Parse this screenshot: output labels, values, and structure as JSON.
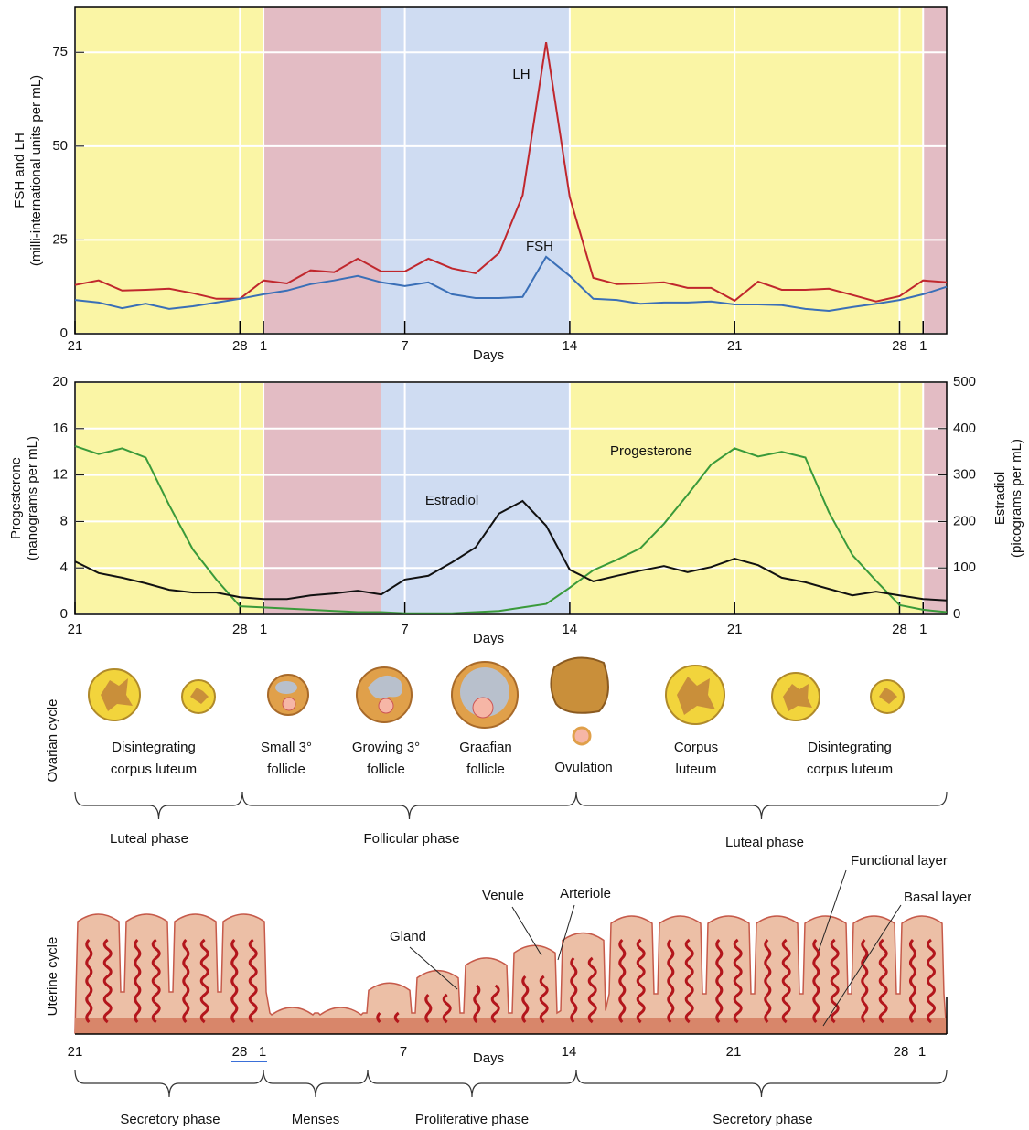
{
  "chart_data": [
    {
      "type": "line",
      "ylabel": [
        "FSH and LH",
        "(milli-international units per mL)"
      ],
      "xlabel": "Days",
      "xlim": [
        0,
        37
      ],
      "xticks": [
        {
          "value": 0,
          "label": "21"
        },
        {
          "value": 7,
          "label": "28"
        },
        {
          "value": 8,
          "label": "1"
        },
        {
          "value": 14,
          "label": "7"
        },
        {
          "value": 21,
          "label": "14"
        },
        {
          "value": 28,
          "label": "21"
        },
        {
          "value": 35,
          "label": "28"
        },
        {
          "value": 36,
          "label": "1"
        }
      ],
      "ylim": [
        0,
        87
      ],
      "yticks": [
        0,
        25,
        50,
        75
      ],
      "grid": true,
      "bands": [
        {
          "from": 0,
          "to": 8,
          "color": "#faf5a5"
        },
        {
          "from": 8,
          "to": 13,
          "color": "#e3bcc4"
        },
        {
          "from": 13,
          "to": 21,
          "color": "#cfdcf2"
        },
        {
          "from": 21,
          "to": 36,
          "color": "#faf5a5"
        },
        {
          "from": 36,
          "to": 37,
          "color": "#e3bcc4"
        }
      ],
      "x": [
        0,
        1,
        2,
        3,
        4,
        5,
        6,
        7,
        8,
        9,
        10,
        11,
        12,
        13,
        14,
        15,
        16,
        17,
        18,
        19,
        20,
        21,
        22,
        23,
        24,
        25,
        26,
        27,
        28,
        29,
        30,
        31,
        32,
        33,
        34,
        35,
        36,
        37
      ],
      "series": [
        {
          "name": "LH",
          "color": "#c0272d",
          "values": [
            13,
            14.2,
            11.5,
            11.7,
            12,
            10.8,
            9.3,
            9.3,
            14.2,
            13.4,
            16.9,
            16.4,
            20,
            16.6,
            16.6,
            20,
            17.4,
            16.1,
            21.5,
            36.9,
            77.7,
            36.4,
            14.9,
            13.2,
            13.4,
            13.7,
            12.2,
            12.2,
            8.8,
            13.9,
            11.7,
            11.7,
            12,
            10.3,
            8.6,
            10,
            14.2,
            13.7
          ]
        },
        {
          "name": "FSH",
          "color": "#3a6fb7",
          "values": [
            9,
            8.3,
            6.8,
            8,
            6.6,
            7.3,
            8.3,
            9.3,
            10.5,
            11.5,
            13.2,
            14.2,
            15.4,
            13.7,
            12.7,
            13.7,
            10.5,
            9.5,
            9.5,
            9.8,
            20.5,
            15.4,
            9.3,
            9,
            8,
            8.3,
            8.3,
            8.6,
            7.8,
            7.8,
            7.6,
            6.6,
            6.1,
            7.1,
            8,
            9,
            10.5,
            12.5
          ]
        }
      ]
    },
    {
      "type": "line",
      "ylabel": [
        "Progesterone",
        "(nanograms per mL)"
      ],
      "y2label": [
        "Estradiol",
        "(picograms per mL)"
      ],
      "xlabel": "Days",
      "xlim": [
        0,
        37
      ],
      "xticks": [
        {
          "value": 0,
          "label": "21"
        },
        {
          "value": 7,
          "label": "28"
        },
        {
          "value": 8,
          "label": "1"
        },
        {
          "value": 14,
          "label": "7"
        },
        {
          "value": 21,
          "label": "14"
        },
        {
          "value": 28,
          "label": "21"
        },
        {
          "value": 35,
          "label": "28"
        },
        {
          "value": 36,
          "label": "1"
        }
      ],
      "ylim": [
        0,
        20
      ],
      "yticks": [
        0,
        4,
        8,
        12,
        16,
        20
      ],
      "y2lim": [
        0,
        500
      ],
      "y2ticks": [
        0,
        100,
        200,
        300,
        400,
        500
      ],
      "grid": true,
      "bands": [
        {
          "from": 0,
          "to": 8,
          "color": "#faf5a5"
        },
        {
          "from": 8,
          "to": 13,
          "color": "#e3bcc4"
        },
        {
          "from": 13,
          "to": 21,
          "color": "#cfdcf2"
        },
        {
          "from": 21,
          "to": 36,
          "color": "#faf5a5"
        },
        {
          "from": 36,
          "to": 37,
          "color": "#e3bcc4"
        }
      ],
      "x": [
        0,
        1,
        2,
        3,
        4,
        5,
        6,
        7,
        8,
        9,
        10,
        11,
        12,
        13,
        14,
        15,
        16,
        17,
        18,
        19,
        20,
        21,
        22,
        23,
        24,
        25,
        26,
        27,
        28,
        29,
        30,
        31,
        32,
        33,
        34,
        35,
        36,
        37
      ],
      "series": [
        {
          "name": "Progesterone",
          "color": "#3a9a3a",
          "values": [
            14.5,
            13.8,
            14.3,
            13.5,
            9.4,
            5.6,
            3,
            0.7,
            0.6,
            0.5,
            0.4,
            0.3,
            0.2,
            0.2,
            0.1,
            0.1,
            0.1,
            0.2,
            0.3,
            0.6,
            0.9,
            2.3,
            3.8,
            4.7,
            5.7,
            7.8,
            10.3,
            12.9,
            14.3,
            13.6,
            14,
            13.5,
            8.8,
            5.1,
            2.9,
            0.8,
            0.4,
            0.2
          ]
        },
        {
          "name": "Estradiol",
          "color": "#111111",
          "axis": "y2",
          "values": [
            114,
            89,
            79,
            67,
            53,
            47,
            47,
            37,
            33,
            33,
            41,
            45,
            51,
            43,
            75,
            83,
            112,
            144,
            217,
            244,
            191,
            96,
            71,
            83,
            94,
            104,
            91,
            102,
            120,
            106,
            79,
            69,
            55,
            41,
            49,
            41,
            33,
            30
          ]
        }
      ]
    }
  ],
  "ovarian_cycle": {
    "title": "Ovarian cycle",
    "stages": [
      [
        "Disintegrating",
        "corpus luteum"
      ],
      [
        "Small 3°",
        "follicle"
      ],
      [
        "Growing 3°",
        "follicle"
      ],
      [
        "Graafian",
        "follicle"
      ],
      [
        "Ovulation"
      ],
      [
        "Corpus",
        "luteum"
      ],
      [
        "Disintegrating",
        "corpus luteum"
      ]
    ],
    "phases": [
      "Luteal phase",
      "Follicular phase",
      "Luteal phase"
    ]
  },
  "uterine_cycle": {
    "title": "Uterine cycle",
    "callouts": [
      "Gland",
      "Venule",
      "Arteriole",
      "Functional layer",
      "Basal layer"
    ],
    "phases": [
      "Secretory phase",
      "Menses",
      "Proliferative phase",
      "Secretory phase"
    ]
  }
}
